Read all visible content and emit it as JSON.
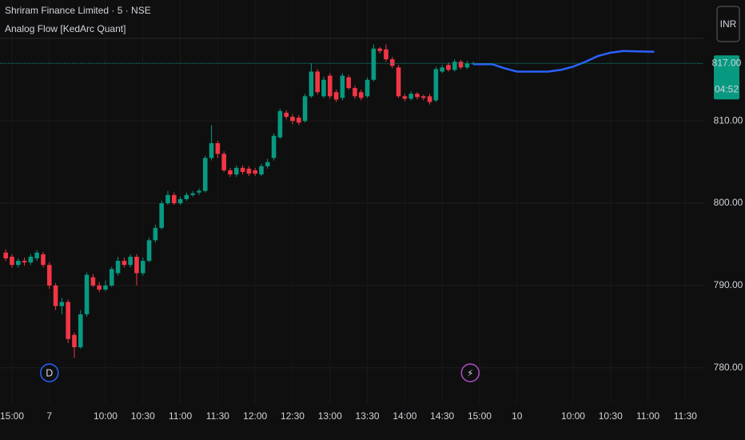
{
  "chart_data": {
    "type": "candlestick",
    "title": "Shriram Finance Limited · 5 · NSE",
    "currency": "INR",
    "countdown": "04:52",
    "last_price": 817,
    "last_price_label": "817.00",
    "up_color": "#089981",
    "down_color": "#f23645",
    "x": [
      -1,
      0,
      1,
      2,
      3,
      4,
      5,
      6,
      7,
      8,
      9,
      10,
      11,
      12,
      13,
      14,
      15,
      16,
      17,
      18,
      19,
      20,
      21,
      22,
      23,
      24,
      25,
      26,
      27,
      28,
      29,
      30,
      31,
      32,
      33,
      34,
      35,
      36,
      37,
      38,
      39,
      40,
      41,
      42,
      43,
      44,
      45,
      46,
      47,
      48,
      49,
      50,
      51,
      52,
      53,
      54,
      55,
      56,
      57,
      58,
      59,
      60,
      61,
      62,
      63,
      64,
      65,
      66,
      67,
      68,
      69,
      70,
      71,
      72,
      73,
      74
    ],
    "open": [
      794,
      793.5,
      792.5,
      793,
      792.8,
      793.3,
      793.8,
      792.5,
      790,
      787.5,
      788,
      784,
      782.5,
      786.5,
      791,
      790,
      789.5,
      790,
      791.5,
      793,
      792.5,
      793.5,
      791.5,
      793,
      795.5,
      797,
      800,
      801,
      800,
      800.5,
      801,
      801.3,
      801.5,
      805.5,
      807.3,
      806,
      804,
      803.5,
      804.3,
      804.2,
      804,
      803.5,
      804.5,
      805.5,
      808,
      811,
      810.5,
      810.4,
      810,
      813,
      816,
      813,
      815.5,
      813.5,
      812.8,
      815.3,
      814,
      813.5,
      813,
      815,
      818.8,
      818.7,
      817.5,
      816.5,
      813,
      812.7,
      813.3,
      813,
      813,
      812.5,
      816,
      816.8,
      816.2,
      817.2,
      816.5,
      817
    ],
    "high": [
      794.4,
      793.8,
      793.3,
      793.4,
      793.8,
      794.3,
      794.1,
      792.8,
      790.3,
      788.5,
      788.3,
      784.3,
      787,
      791.6,
      791.4,
      790.4,
      790.6,
      792.3,
      793.5,
      793.4,
      793.8,
      793.8,
      793.4,
      795.8,
      797.4,
      800.3,
      801.5,
      801.3,
      800.8,
      801.3,
      801.5,
      801.8,
      805.8,
      809.5,
      807.6,
      806.3,
      804.3,
      804.6,
      804.6,
      804.5,
      804.3,
      804.8,
      805.4,
      808.5,
      811.5,
      811.3,
      810.8,
      810.7,
      813.3,
      817,
      816.3,
      815.4,
      815.8,
      813.8,
      815.8,
      815.6,
      814.3,
      813.8,
      815.3,
      819.3,
      819,
      819.3,
      817.8,
      816.8,
      813.3,
      813.6,
      813.5,
      813.2,
      813.3,
      816.6,
      816.8,
      817.1,
      817.5,
      817.4,
      817.3,
      817.2
    ],
    "low": [
      793,
      792.2,
      792.2,
      792.4,
      792.5,
      793,
      792.2,
      789.6,
      787,
      786.5,
      783,
      781.2,
      782.3,
      786.2,
      789.8,
      789.2,
      789.3,
      789.8,
      791.2,
      792.2,
      792.2,
      790,
      791.2,
      792.8,
      795.2,
      796.8,
      799.8,
      799.8,
      799.8,
      800.3,
      800.8,
      801,
      801.3,
      805.2,
      805.5,
      803.8,
      803.2,
      803.2,
      803.5,
      803.3,
      803.3,
      803.3,
      804.2,
      805.2,
      807.8,
      810.2,
      809.6,
      809.5,
      809.8,
      812.8,
      813.2,
      812.8,
      812.7,
      812.3,
      812.5,
      813.8,
      812.7,
      812.5,
      812.8,
      814.8,
      818.2,
      817.2,
      816.4,
      812.8,
      812.4,
      812.5,
      812.6,
      812.5,
      812,
      812.3,
      815.8,
      816,
      816,
      816.3,
      816.3,
      816.8
    ],
    "close": [
      793.3,
      792.5,
      793,
      792.8,
      793.5,
      794,
      792.5,
      790,
      787.5,
      788,
      783.5,
      782.5,
      786.5,
      791.3,
      790,
      789.5,
      790,
      792,
      793,
      792.5,
      793.5,
      791.5,
      793,
      795.5,
      797,
      800,
      801,
      800,
      800.5,
      801,
      801.2,
      801.5,
      805.5,
      807.3,
      806,
      804,
      803.5,
      804.3,
      803.8,
      803.6,
      803.6,
      804.5,
      805,
      808.2,
      811.2,
      810.5,
      810,
      809.8,
      813,
      816,
      813.5,
      815,
      813,
      812.6,
      815.5,
      814,
      813,
      812.8,
      815,
      818.8,
      818.5,
      817.5,
      816.7,
      813,
      812.7,
      813.3,
      812.9,
      812.8,
      812.3,
      816.3,
      816.5,
      816.2,
      817.2,
      816.5,
      817,
      817
    ],
    "series": [
      {
        "name": "Analog Flow [KedArc Quant]",
        "color": "#2962ff",
        "x": [
          74,
          77,
          79,
          81,
          86,
          88,
          90,
          92,
          94,
          96,
          98,
          103
        ],
        "values": [
          816.9,
          816.9,
          816.4,
          816,
          816,
          816.2,
          816.6,
          817.2,
          817.9,
          818.3,
          818.5,
          818.4
        ]
      }
    ],
    "markers": [
      {
        "x": 6,
        "label": "D",
        "color": "#2962ff"
      },
      {
        "x": 73.5,
        "label": "⚡",
        "color": "#b04fc9"
      }
    ],
    "xlim": [
      -1.92,
      110.9
    ],
    "xticks": [
      {
        "value": 0,
        "label": "15:00"
      },
      {
        "value": 6,
        "label": "7"
      },
      {
        "value": 15,
        "label": "10:00"
      },
      {
        "value": 21,
        "label": "10:30"
      },
      {
        "value": 27,
        "label": "11:00"
      },
      {
        "value": 33,
        "label": "11:30"
      },
      {
        "value": 39,
        "label": "12:00"
      },
      {
        "value": 45,
        "label": "12:30"
      },
      {
        "value": 51,
        "label": "13:00"
      },
      {
        "value": 57,
        "label": "13:30"
      },
      {
        "value": 63,
        "label": "14:00"
      },
      {
        "value": 69,
        "label": "14:30"
      },
      {
        "value": 75,
        "label": "15:00"
      },
      {
        "value": 81,
        "label": "10"
      },
      {
        "value": 90,
        "label": "10:00"
      },
      {
        "value": 96,
        "label": "10:30"
      },
      {
        "value": 102,
        "label": "11:00"
      },
      {
        "value": 108,
        "label": "11:30"
      }
    ],
    "ylim": [
      775.6,
      824.7
    ],
    "yticks": [
      {
        "value": 780,
        "label": "780.00"
      },
      {
        "value": 790,
        "label": "790.00"
      },
      {
        "value": 800,
        "label": "800.00"
      },
      {
        "value": 810,
        "label": "810.00"
      }
    ],
    "grid": true
  }
}
